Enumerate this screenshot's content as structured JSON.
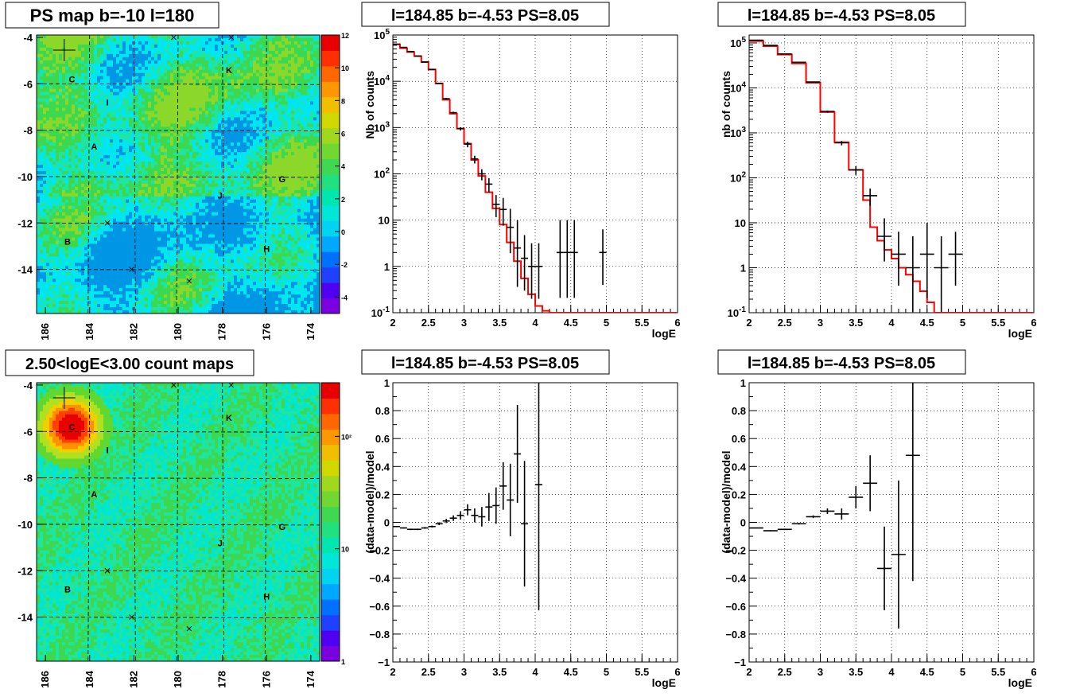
{
  "colors": {
    "frame": "#000000",
    "grid": "#000000",
    "model_line": "#ff0000",
    "data_points": "#000000",
    "sky_bg": "#00e6f0",
    "sky_green": "#3cd850"
  },
  "source_labels": [
    {
      "id": "C",
      "l": 184.8,
      "b": -5.8
    },
    {
      "id": "I",
      "l": 183.2,
      "b": -6.8
    },
    {
      "id": "A",
      "l": 183.8,
      "b": -8.7
    },
    {
      "id": "K",
      "l": 177.7,
      "b": -5.4
    },
    {
      "id": "G",
      "l": 175.3,
      "b": -10.1
    },
    {
      "id": "J",
      "l": 178.1,
      "b": -10.8
    },
    {
      "id": "B",
      "l": 185.0,
      "b": -12.8
    },
    {
      "id": "H",
      "l": 176.0,
      "b": -13.1
    }
  ],
  "markers": [
    {
      "type": "cross",
      "l": 185.15,
      "b": -4.55
    },
    {
      "type": "x",
      "l": 180.2,
      "b": -4.0
    },
    {
      "type": "x",
      "l": 177.6,
      "b": -4.0
    },
    {
      "type": "x",
      "l": 183.2,
      "b": -12.0
    },
    {
      "type": "x",
      "l": 182.1,
      "b": -14.0
    },
    {
      "type": "x",
      "l": 179.5,
      "b": -14.5
    }
  ],
  "chart_data": [
    {
      "type": "heatmap",
      "title": "PS map b=-10 l=180",
      "x_ticks": [
        "186",
        "184",
        "182",
        "180",
        "178",
        "176",
        "174"
      ],
      "y_ticks": [
        "-4",
        "-6",
        "-8",
        "-10",
        "-12",
        "-14"
      ],
      "xlim": [
        186.4,
        173.6
      ],
      "ylim": [
        -15.9,
        -3.9
      ],
      "colorbar_ticks": [
        "12",
        "10",
        "8",
        "6",
        "4",
        "2",
        "0",
        "-2",
        "-4"
      ],
      "colorbar_range": [
        -5,
        12
      ],
      "grid": true
    },
    {
      "type": "line",
      "title": "l=184.85 b=-4.53 PS=8.05",
      "xlabel": "logE",
      "ylabel": "Nb of counts",
      "xlim": [
        2,
        6
      ],
      "ylim": [
        0.1,
        100000
      ],
      "yscale": "log",
      "x_ticks": [
        "2",
        "2.5",
        "3",
        "3.5",
        "4",
        "4.5",
        "5",
        "5.5",
        "6"
      ],
      "y_ticks": [
        "10^{-1}",
        "1",
        "10",
        "10^{2}",
        "10^{3}",
        "10^{4}",
        "10^{5}"
      ],
      "grid": true,
      "series": [
        {
          "kind": "model_step",
          "bin_width": 0.1,
          "edges": [
            2.0,
            2.1,
            2.2,
            2.3,
            2.4,
            2.5,
            2.6,
            2.7,
            2.8,
            2.9,
            3.0,
            3.1,
            3.2,
            3.3,
            3.4,
            3.5,
            3.6,
            3.7,
            3.8,
            3.9,
            4.0,
            4.1,
            4.2,
            4.3,
            4.4,
            4.5,
            4.6,
            4.7,
            4.8,
            4.9,
            5.0,
            5.1,
            5.2,
            5.3,
            5.4,
            5.5,
            5.6,
            5.7,
            5.8,
            5.9,
            6.0
          ],
          "values": [
            63000,
            52000,
            43000,
            35000,
            26000,
            18000,
            9000,
            4000,
            2000,
            950,
            450,
            200,
            90,
            40,
            18,
            8,
            3.3,
            1.3,
            0.55,
            0.25,
            0.14,
            0.11,
            0.1,
            0.1,
            0.1,
            0.1,
            0.1,
            0.1,
            0.1,
            0.1,
            0.1,
            0.1,
            0.1,
            0.1,
            0.1,
            0.1,
            0.1,
            0.1,
            0.1,
            0.1
          ]
        },
        {
          "kind": "data_points",
          "half_width": 0.05,
          "x": [
            2.05,
            2.15,
            2.25,
            2.35,
            2.45,
            2.55,
            2.65,
            2.75,
            2.85,
            2.95,
            3.05,
            3.15,
            3.25,
            3.35,
            3.45,
            3.55,
            3.65,
            3.75,
            3.85,
            3.95,
            4.05,
            4.35,
            4.45,
            4.55,
            4.95
          ],
          "y": [
            63000,
            54000,
            44000,
            35000,
            26000,
            18000,
            9000,
            4200,
            2100,
            950,
            440,
            210,
            100,
            60,
            22,
            17,
            7,
            2.5,
            1.5,
            1,
            1,
            2,
            2,
            2,
            2
          ],
          "err": [
            0.004,
            0.004,
            0.005,
            0.005,
            0.006,
            0.007,
            0.01,
            0.015,
            0.02,
            0.03,
            0.05,
            0.07,
            0.1,
            0.13,
            0.2,
            0.25,
            0.4,
            0.6,
            0.5,
            0.5,
            0.5,
            0.7,
            0.7,
            0.7,
            0.5
          ]
        }
      ]
    },
    {
      "type": "line",
      "title": "l=184.85 b=-4.53 PS=8.05",
      "xlabel": "logE",
      "ylabel": "nb of counts",
      "xlim": [
        2,
        6
      ],
      "ylim": [
        0.1,
        150000
      ],
      "yscale": "log",
      "x_ticks": [
        "2",
        "2.5",
        "3",
        "3.5",
        "4",
        "4.5",
        "5",
        "5.5",
        "6"
      ],
      "y_ticks": [
        "10^{-1}",
        "1",
        "10",
        "10^{2}",
        "10^{3}",
        "10^{4}",
        "10^{5}"
      ],
      "grid": true,
      "series": [
        {
          "kind": "model_step",
          "bin_width": 0.2,
          "edges": [
            2.0,
            2.2,
            2.4,
            2.6,
            2.8,
            3.0,
            3.2,
            3.4,
            3.6,
            3.8,
            4.0,
            4.2,
            4.4,
            4.6,
            4.8,
            5.0,
            5.2,
            5.4,
            5.6,
            5.8,
            6.0
          ],
          "values": [
            110000,
            85000,
            55000,
            35000,
            13000,
            2900,
            620,
            150,
            35,
            8,
            3,
            1.3,
            0.45,
            0.18,
            0.1,
            0.1,
            0.1,
            0.1,
            0.1,
            0.1
          ],
          "fine": [
            [
              3.5,
              3.6,
              150
            ],
            [
              3.6,
              3.7,
              32
            ],
            [
              3.7,
              3.8,
              8
            ],
            [
              3.8,
              3.9,
              4
            ],
            [
              3.9,
              4.0,
              2.5
            ],
            [
              4.0,
              4.1,
              1.6
            ],
            [
              4.1,
              4.2,
              1.0
            ],
            [
              4.2,
              4.3,
              0.7
            ],
            [
              4.3,
              4.4,
              0.5
            ],
            [
              4.4,
              4.5,
              0.3
            ],
            [
              4.5,
              4.6,
              0.17
            ]
          ]
        },
        {
          "kind": "data_points",
          "half_width": 0.1,
          "x": [
            2.1,
            2.3,
            2.5,
            2.7,
            2.9,
            3.1,
            3.3,
            3.5,
            3.7,
            3.9,
            4.1,
            4.3,
            4.5,
            4.7,
            4.9
          ],
          "y": [
            115000,
            88000,
            57000,
            37000,
            13500,
            3000,
            600,
            150,
            40,
            5,
            2,
            1,
            2,
            1,
            2
          ],
          "err": [
            0.003,
            0.004,
            0.005,
            0.006,
            0.01,
            0.02,
            0.04,
            0.08,
            0.16,
            0.4,
            0.5,
            0.7,
            0.7,
            0.7,
            0.5
          ]
        }
      ]
    },
    {
      "type": "heatmap",
      "title": "2.50<logE<3.00 count maps",
      "x_ticks": [
        "186",
        "184",
        "182",
        "180",
        "178",
        "176",
        "174"
      ],
      "y_ticks": [
        "-4",
        "-6",
        "-8",
        "-10",
        "-12",
        "-14"
      ],
      "xlim": [
        186.4,
        173.6
      ],
      "ylim": [
        -15.9,
        -3.9
      ],
      "colorbar_ticks": [
        "10²",
        "10",
        "1"
      ],
      "colorbar_scale": "log",
      "grid": true
    },
    {
      "type": "scatter",
      "title": "l=184.85 b=-4.53 PS=8.05",
      "xlabel": "logE",
      "ylabel": "(data-model)/model",
      "xlim": [
        2,
        6
      ],
      "ylim": [
        -1,
        1
      ],
      "x_ticks": [
        "2",
        "2.5",
        "3",
        "3.5",
        "4",
        "4.5",
        "5",
        "5.5",
        "6"
      ],
      "y_ticks": [
        "1",
        "0.8",
        "0.6",
        "0.4",
        "0.2",
        "0",
        "−0.2",
        "−0.4",
        "−0.6",
        "−0.8",
        "−1"
      ],
      "grid": true,
      "half_width": 0.05,
      "x": [
        2.05,
        2.15,
        2.25,
        2.35,
        2.45,
        2.55,
        2.65,
        2.75,
        2.85,
        2.95,
        3.05,
        3.15,
        3.25,
        3.35,
        3.45,
        3.55,
        3.65,
        3.75,
        3.85,
        4.05
      ],
      "y": [
        -0.03,
        -0.04,
        -0.05,
        -0.05,
        -0.04,
        -0.03,
        -0.01,
        0.01,
        0.03,
        0.05,
        0.09,
        0.05,
        0.04,
        0.11,
        0.12,
        0.26,
        0.16,
        0.49,
        -0.01,
        0.27
      ],
      "err": [
        0.004,
        0.004,
        0.005,
        0.005,
        0.006,
        0.007,
        0.01,
        0.015,
        0.02,
        0.03,
        0.04,
        0.05,
        0.07,
        0.1,
        0.13,
        0.17,
        0.26,
        0.35,
        0.45,
        0.9
      ]
    },
    {
      "type": "scatter",
      "title": "l=184.85 b=-4.53 PS=8.05",
      "xlabel": "logE",
      "ylabel": "(data-model)/model",
      "xlim": [
        2,
        6
      ],
      "ylim": [
        -1,
        1
      ],
      "x_ticks": [
        "2",
        "2.5",
        "3",
        "3.5",
        "4",
        "4.5",
        "5",
        "5.5",
        "6"
      ],
      "y_ticks": [
        "1",
        "0.8",
        "0.6",
        "0.4",
        "0.2",
        "0",
        "−0.2",
        "−0.4",
        "−0.6",
        "−0.8",
        "−1"
      ],
      "grid": true,
      "half_width": 0.1,
      "x": [
        2.1,
        2.3,
        2.5,
        2.7,
        2.9,
        3.1,
        3.3,
        3.5,
        3.7,
        3.9,
        4.1,
        4.3
      ],
      "y": [
        -0.04,
        -0.06,
        -0.05,
        -0.01,
        0.04,
        0.08,
        0.06,
        0.18,
        0.28,
        -0.33,
        -0.23,
        0.48
      ],
      "err": [
        0.003,
        0.004,
        0.005,
        0.006,
        0.01,
        0.02,
        0.04,
        0.08,
        0.2,
        0.3,
        0.53,
        0.9
      ]
    }
  ]
}
